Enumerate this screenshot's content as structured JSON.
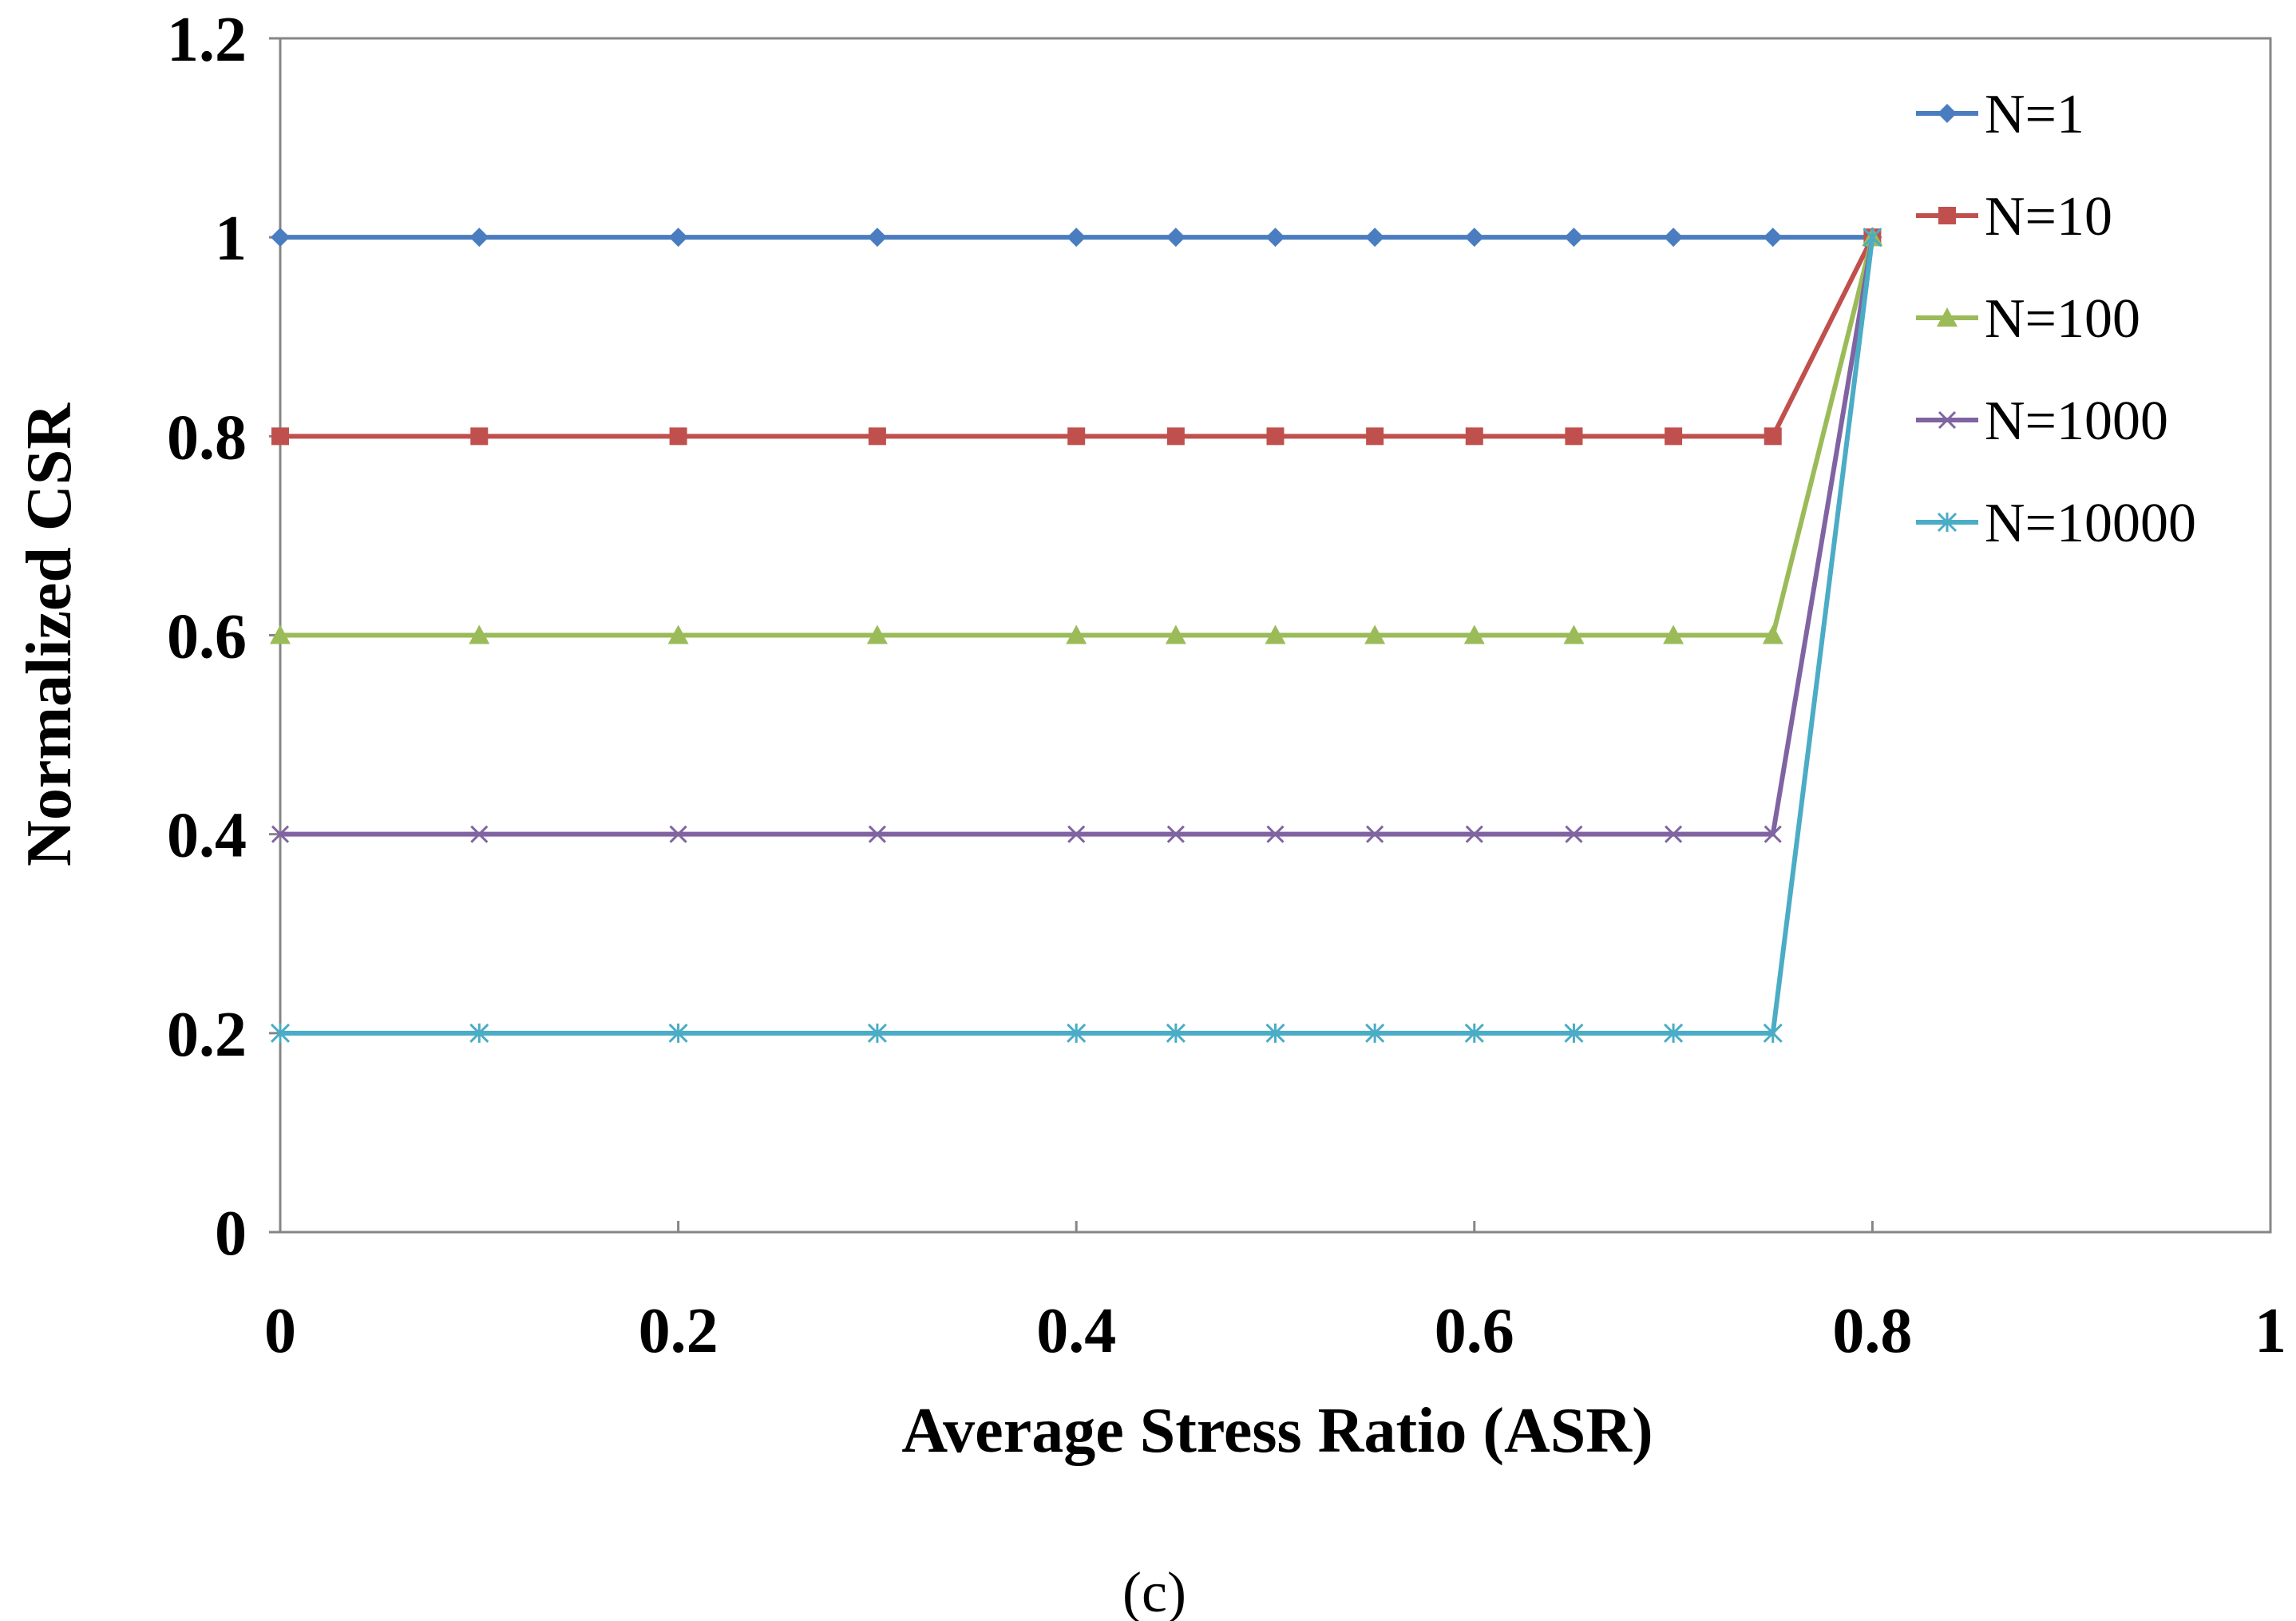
{
  "chart_data": {
    "type": "line",
    "title": "",
    "xlabel": "Average Stress Ratio (ASR)",
    "ylabel": "Normalized CSR",
    "xlim": [
      0,
      1
    ],
    "ylim": [
      0,
      1.2
    ],
    "xticks": [
      0,
      0.2,
      0.4,
      0.6,
      0.8,
      1
    ],
    "xtick_labels": [
      "0",
      "0.2",
      "0.4",
      "0.6",
      "0.8",
      "1"
    ],
    "yticks": [
      0,
      0.2,
      0.4,
      0.6,
      0.8,
      1,
      1.2
    ],
    "ytick_labels": [
      "0",
      "0.2",
      "0.4",
      "0.6",
      "0.8",
      "1",
      "1.2"
    ],
    "grid": false,
    "legend_position": "top-right",
    "caption": "(c)",
    "x": [
      0,
      0.1,
      0.2,
      0.3,
      0.4,
      0.45,
      0.5,
      0.55,
      0.6,
      0.65,
      0.7,
      0.75,
      0.8
    ],
    "series": [
      {
        "name": "N=1",
        "color": "#4a7dc0",
        "marker": "diamond",
        "values": [
          1,
          1,
          1,
          1,
          1,
          1,
          1,
          1,
          1,
          1,
          1,
          1,
          1
        ]
      },
      {
        "name": "N=10",
        "color": "#c0504d",
        "marker": "square",
        "values": [
          0.8,
          0.8,
          0.8,
          0.8,
          0.8,
          0.8,
          0.8,
          0.8,
          0.8,
          0.8,
          0.8,
          0.8,
          1
        ]
      },
      {
        "name": "N=100",
        "color": "#9bbb59",
        "marker": "triangle",
        "values": [
          0.6,
          0.6,
          0.6,
          0.6,
          0.6,
          0.6,
          0.6,
          0.6,
          0.6,
          0.6,
          0.6,
          0.6,
          1
        ]
      },
      {
        "name": "N=1000",
        "color": "#8064a2",
        "marker": "x",
        "values": [
          0.4,
          0.4,
          0.4,
          0.4,
          0.4,
          0.4,
          0.4,
          0.4,
          0.4,
          0.4,
          0.4,
          0.4,
          1
        ]
      },
      {
        "name": "N=10000",
        "color": "#4bacc6",
        "marker": "star",
        "values": [
          0.2,
          0.2,
          0.2,
          0.2,
          0.2,
          0.2,
          0.2,
          0.2,
          0.2,
          0.2,
          0.2,
          0.2,
          1
        ]
      }
    ]
  }
}
